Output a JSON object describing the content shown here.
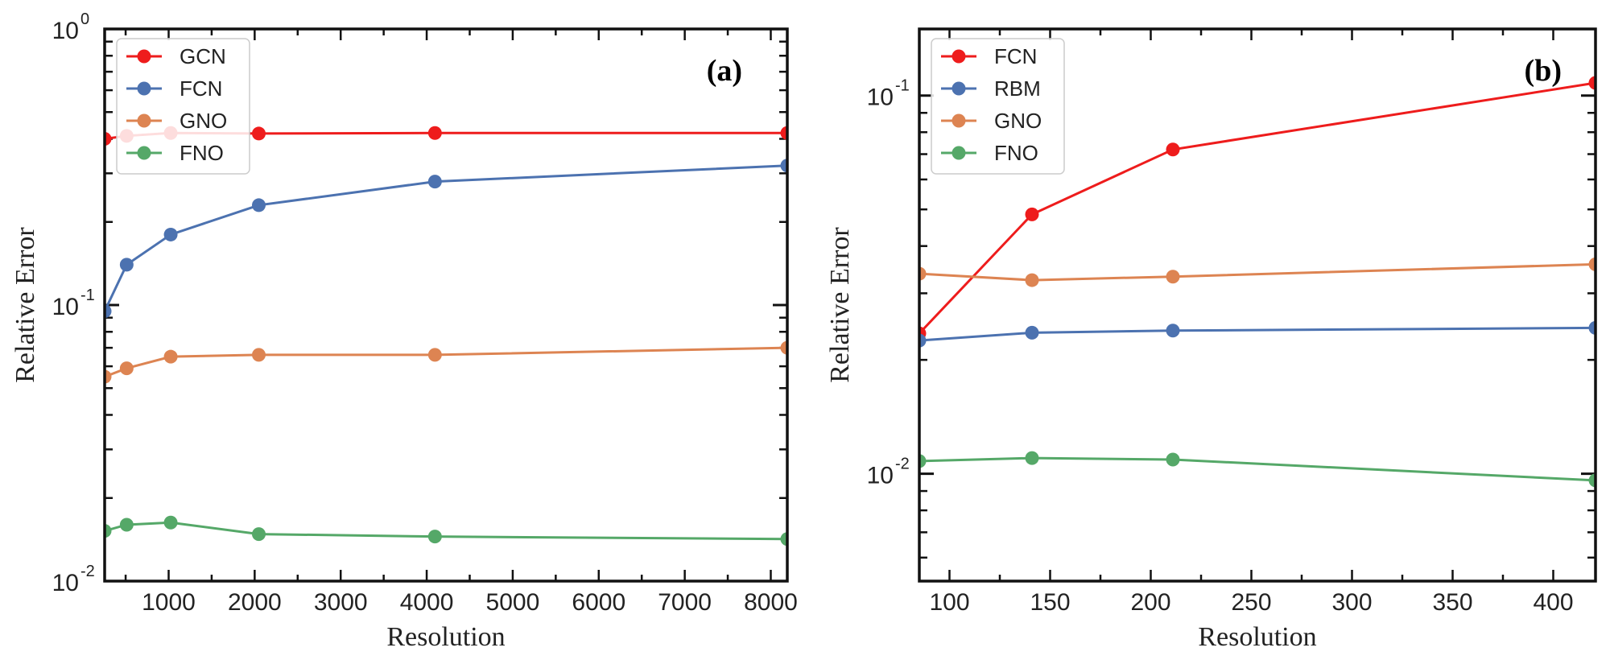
{
  "chart_data": [
    {
      "type": "line",
      "panel_label": "(a)",
      "xlabel": "Resolution",
      "ylabel": "Relative Error",
      "xscale": "linear",
      "yscale": "log",
      "xlim": [
        256,
        8192
      ],
      "ylim": [
        0.01,
        1
      ],
      "xticks": [
        {
          "value": 1000,
          "label": "1000"
        },
        {
          "value": 2000,
          "label": "2000"
        },
        {
          "value": 3000,
          "label": "3000"
        },
        {
          "value": 4000,
          "label": "4000"
        },
        {
          "value": 5000,
          "label": "5000"
        },
        {
          "value": 6000,
          "label": "6000"
        },
        {
          "value": 7000,
          "label": "7000"
        },
        {
          "value": 8000,
          "label": "8000"
        }
      ],
      "yticks": [
        {
          "value": 0.01,
          "base": "10",
          "exp": "-2"
        },
        {
          "value": 0.1,
          "base": "10",
          "exp": "-1"
        },
        {
          "value": 1,
          "base": "10",
          "exp": "0"
        }
      ],
      "legend_position": "top-left",
      "series": [
        {
          "name": "GCN",
          "color": "#ee1c1c",
          "x": [
            256,
            512,
            1024,
            2048,
            4096,
            8192
          ],
          "values": [
            0.4,
            0.41,
            0.42,
            0.418,
            0.42,
            0.42
          ]
        },
        {
          "name": "FCN",
          "color": "#4c72b0",
          "x": [
            256,
            512,
            1024,
            2048,
            4096,
            8192
          ],
          "values": [
            0.095,
            0.14,
            0.18,
            0.23,
            0.28,
            0.32
          ]
        },
        {
          "name": "GNO",
          "color": "#dd8452",
          "x": [
            256,
            512,
            1024,
            2048,
            4096,
            8192
          ],
          "values": [
            0.055,
            0.059,
            0.065,
            0.066,
            0.066,
            0.07
          ]
        },
        {
          "name": "FNO",
          "color": "#55a868",
          "x": [
            256,
            512,
            1024,
            2048,
            4096,
            8192
          ],
          "values": [
            0.0152,
            0.016,
            0.0163,
            0.0148,
            0.0145,
            0.0142
          ]
        }
      ]
    },
    {
      "type": "line",
      "panel_label": "(b)",
      "xlabel": "Resolution",
      "ylabel": "Relative Error",
      "xscale": "linear",
      "yscale": "log",
      "xlim": [
        85,
        421
      ],
      "ylim": [
        0.0052,
        0.15
      ],
      "xticks": [
        {
          "value": 100,
          "label": "100"
        },
        {
          "value": 150,
          "label": "150"
        },
        {
          "value": 200,
          "label": "200"
        },
        {
          "value": 250,
          "label": "250"
        },
        {
          "value": 300,
          "label": "300"
        },
        {
          "value": 350,
          "label": "350"
        },
        {
          "value": 400,
          "label": "400"
        }
      ],
      "yticks": [
        {
          "value": 0.01,
          "base": "10",
          "exp": "-2"
        },
        {
          "value": 0.1,
          "base": "10",
          "exp": "-1"
        }
      ],
      "legend_position": "top-left",
      "series": [
        {
          "name": "FCN",
          "color": "#ee1c1c",
          "x": [
            85,
            141,
            211,
            421
          ],
          "values": [
            0.0235,
            0.0485,
            0.072,
            0.108
          ]
        },
        {
          "name": "RBM",
          "color": "#4c72b0",
          "x": [
            85,
            141,
            211,
            421
          ],
          "values": [
            0.0225,
            0.0236,
            0.0239,
            0.0243
          ]
        },
        {
          "name": "GNO",
          "color": "#dd8452",
          "x": [
            85,
            141,
            211,
            421
          ],
          "values": [
            0.0338,
            0.0325,
            0.0332,
            0.0358
          ]
        },
        {
          "name": "FNO",
          "color": "#55a868",
          "x": [
            85,
            141,
            211,
            421
          ],
          "values": [
            0.0108,
            0.011,
            0.0109,
            0.0096
          ]
        }
      ]
    }
  ]
}
